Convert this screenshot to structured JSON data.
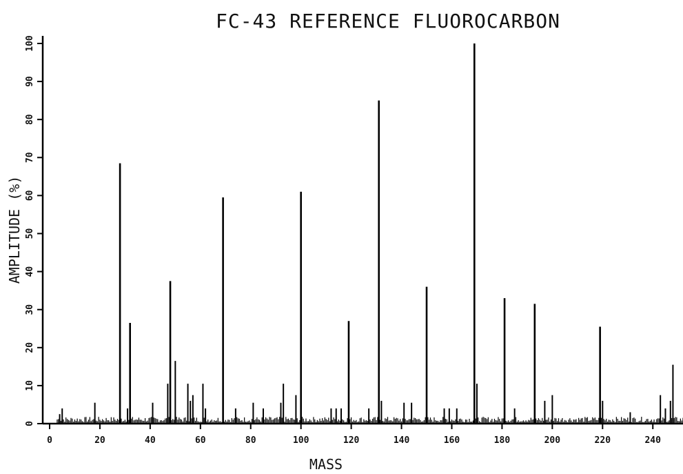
{
  "chart_data": {
    "type": "bar",
    "title": "FC-43 REFERENCE FLUOROCARBON",
    "xlabel": "MASS",
    "ylabel": "AMPLITUDE (%)",
    "xlim": [
      0,
      252
    ],
    "ylim": [
      0,
      100
    ],
    "x_ticks": [
      0,
      20,
      40,
      60,
      80,
      100,
      120,
      140,
      160,
      180,
      200,
      220,
      240
    ],
    "x_tick_labels": [
      "0",
      "20",
      "40",
      "60",
      "80",
      "100",
      "120",
      "140",
      "160",
      "180",
      "200",
      "220",
      "240"
    ],
    "y_ticks": [
      0,
      10,
      20,
      30,
      40,
      50,
      60,
      70,
      80,
      90,
      100
    ],
    "y_tick_labels": [
      "0",
      "10",
      "20",
      "30",
      "40",
      "50",
      "60",
      "70",
      "80",
      "90",
      "100"
    ],
    "grid": false,
    "color": "#000000",
    "peaks": {
      "x": [
        4,
        5,
        18,
        28,
        31,
        32,
        41,
        47,
        48,
        50,
        55,
        56,
        57,
        61,
        62,
        69,
        74,
        81,
        85,
        92,
        93,
        98,
        100,
        112,
        114,
        116,
        119,
        127,
        131,
        132,
        141,
        144,
        150,
        157,
        159,
        162,
        169,
        170,
        181,
        185,
        193,
        197,
        200,
        219,
        220,
        231,
        243,
        245,
        247,
        248
      ],
      "values": [
        2.5,
        4,
        5.5,
        68.5,
        4,
        26.5,
        5.5,
        10.5,
        37.5,
        16.5,
        10.5,
        6,
        7.5,
        10.5,
        4,
        59.5,
        4,
        5.5,
        4,
        5.5,
        10.5,
        7.5,
        61,
        4,
        4,
        4,
        27,
        4,
        85,
        6,
        5.5,
        5.5,
        36,
        4,
        4,
        4,
        100,
        10.5,
        33,
        4,
        31.5,
        6,
        7.5,
        25.5,
        6,
        3,
        7.5,
        4,
        6,
        15.5
      ]
    }
  }
}
